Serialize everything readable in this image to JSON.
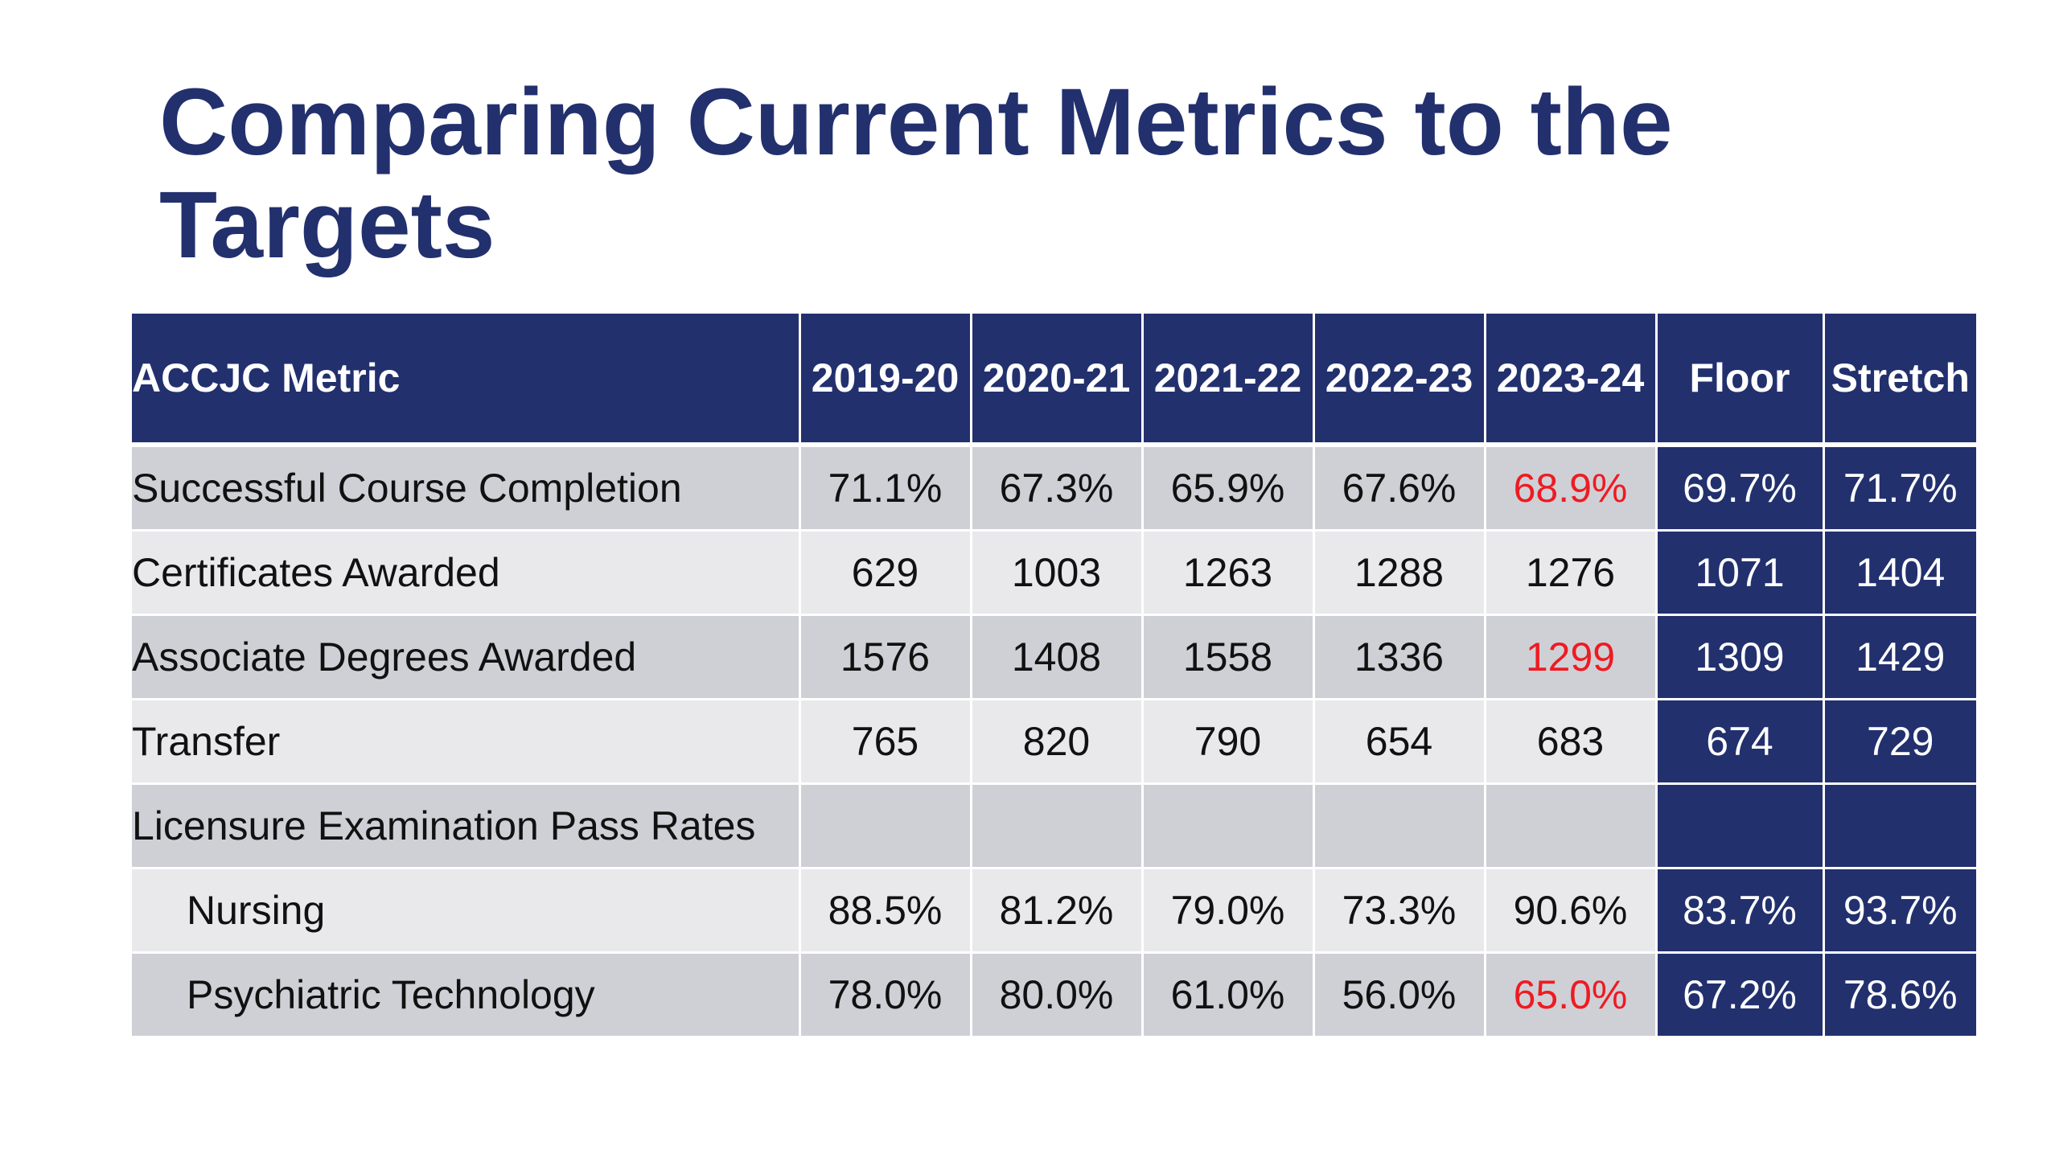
{
  "slide": {
    "title": "Comparing Current Metrics to the Targets"
  },
  "colors": {
    "title": "#22306e",
    "header_bg": "#22306e",
    "target_bg": "#22306e",
    "row_dark": "#cfd0d6",
    "row_light": "#e9e9ec",
    "below_floor_text": "#ee1b22"
  },
  "table": {
    "headers": {
      "metric": "ACCJC Metric",
      "y2019": "2019-20",
      "y2020": "2020-21",
      "y2021": "2021-22",
      "y2022": "2022-23",
      "y2023": "2023-24",
      "floor": "Floor",
      "stretch": "Stretch"
    },
    "rows": [
      {
        "metric": "Successful Course Completion",
        "y2019": "71.1%",
        "y2020": "67.3%",
        "y2021": "65.9%",
        "y2022": "67.6%",
        "y2023": "68.9%",
        "floor": "69.7%",
        "stretch": "71.7%",
        "y2023_below_floor": true
      },
      {
        "metric": "Certificates Awarded",
        "y2019": "629",
        "y2020": "1003",
        "y2021": "1263",
        "y2022": "1288",
        "y2023": "1276",
        "floor": "1071",
        "stretch": "1404",
        "y2023_below_floor": false
      },
      {
        "metric": "Associate Degrees Awarded",
        "y2019": "1576",
        "y2020": "1408",
        "y2021": "1558",
        "y2022": "1336",
        "y2023": "1299",
        "floor": "1309",
        "stretch": "1429",
        "y2023_below_floor": true
      },
      {
        "metric": "Transfer",
        "y2019": "765",
        "y2020": "820",
        "y2021": "790",
        "y2022": "654",
        "y2023": "683",
        "floor": "674",
        "stretch": "729",
        "y2023_below_floor": false
      },
      {
        "metric": "Licensure Examination Pass Rates",
        "y2019": "",
        "y2020": "",
        "y2021": "",
        "y2022": "",
        "y2023": "",
        "floor": "",
        "stretch": "",
        "y2023_below_floor": false
      },
      {
        "metric": "Nursing",
        "y2019": "88.5%",
        "y2020": "81.2%",
        "y2021": "79.0%",
        "y2022": "73.3%",
        "y2023": "90.6%",
        "floor": "83.7%",
        "stretch": "93.7%",
        "y2023_below_floor": false
      },
      {
        "metric": "Psychiatric Technology",
        "y2019": "78.0%",
        "y2020": "80.0%",
        "y2021": "61.0%",
        "y2022": "56.0%",
        "y2023": "65.0%",
        "floor": "67.2%",
        "stretch": "78.6%",
        "y2023_below_floor": true
      }
    ]
  }
}
